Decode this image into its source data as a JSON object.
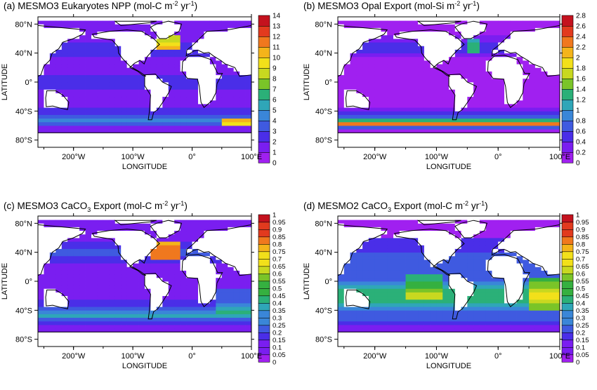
{
  "figure": {
    "panels": [
      {
        "id": "a",
        "title_prefix": "(a) MESMO3 Eukaryotes NPP (mol-C m",
        "title_sup1": "-2",
        "title_mid": " yr",
        "title_sup2": "-1",
        "title_end": ")",
        "title_sub": "",
        "field": "npp",
        "vmax": 14,
        "colorbar_labels": [
          "0",
          "1",
          "2",
          "3",
          "4",
          "5",
          "6",
          "7",
          "8",
          "9",
          "10",
          "11",
          "12",
          "13",
          "14"
        ],
        "xticks": [
          "200°W",
          "100°W",
          "0°",
          "100°E"
        ],
        "yticks": [
          "80°N",
          "40°N",
          "0°",
          "40°S",
          "80°S"
        ],
        "xlabel": "LONGITUDE",
        "ylabel": "LATITUDE"
      },
      {
        "id": "b",
        "title_prefix": "(b) MESMO3 Opal Export (mol-Si m",
        "title_sup1": "-2",
        "title_mid": " yr",
        "title_sup2": "-1",
        "title_end": ")",
        "title_sub": "",
        "field": "opal",
        "vmax": 2.8,
        "colorbar_labels": [
          "0",
          "0.2",
          "0.4",
          "0.6",
          "0.8",
          "1",
          "1.2",
          "1.4",
          "1.6",
          "1.8",
          "2",
          "2.2",
          "2.4",
          "2.6",
          "2.8"
        ],
        "xticks": [
          "200°W",
          "100°W",
          "0°",
          "100°E"
        ],
        "yticks": [
          "80°N",
          "40°N",
          "0°",
          "40°S",
          "80°S"
        ],
        "xlabel": "LONGITUDE",
        "ylabel": "LATITUDE"
      },
      {
        "id": "c",
        "title_prefix": "(c) MESMO3 CaCO",
        "title_sub": "3",
        "title_after_sub": " Export (mol-C m",
        "title_sup1": "-2",
        "title_mid": " yr",
        "title_sup2": "-1",
        "title_end": ")",
        "field": "caco3_m3",
        "vmax": 1,
        "colorbar_labels": [
          "0",
          "0.05",
          "0.1",
          "0.15",
          "0.2",
          "0.25",
          "0.3",
          "0.35",
          "0.4",
          "0.45",
          "0.5",
          "0.55",
          "0.6",
          "0.65",
          "0.7",
          "0.75",
          "0.8",
          "0.85",
          "0.9",
          "0.95",
          "1"
        ],
        "xticks": [
          "200°W",
          "100°W",
          "0°",
          "100°E"
        ],
        "yticks": [
          "80°N",
          "40°N",
          "0°",
          "40°S",
          "80°S"
        ],
        "xlabel": "LONGITUDE",
        "ylabel": "LATITUDE"
      },
      {
        "id": "d",
        "title_prefix": "(d) MESMO2 CaCO",
        "title_sub": "3",
        "title_after_sub": " Export (mol-C m",
        "title_sup1": "-2",
        "title_mid": " yr",
        "title_sup2": "-1",
        "title_end": ")",
        "field": "caco3_m2",
        "vmax": 1,
        "colorbar_labels": [
          "0",
          "0.05",
          "0.1",
          "0.15",
          "0.2",
          "0.25",
          "0.3",
          "0.35",
          "0.4",
          "0.45",
          "0.5",
          "0.55",
          "0.6",
          "0.65",
          "0.7",
          "0.75",
          "0.8",
          "0.85",
          "0.9",
          "0.95",
          "1"
        ],
        "xticks": [
          "200°W",
          "100°W",
          "0°",
          "100°E"
        ],
        "yticks": [
          "80°N",
          "40°N",
          "0°",
          "40°S",
          "80°S"
        ],
        "xlabel": "LONGITUDE",
        "ylabel": "LATITUDE"
      }
    ],
    "colormap": [
      "#a020f0",
      "#7a1ef0",
      "#4a2ee8",
      "#3f5ae0",
      "#3a86d8",
      "#2fa6b8",
      "#2bb078",
      "#35b040",
      "#7ac428",
      "#c8d820",
      "#f2e01a",
      "#f4b41a",
      "#f0781e",
      "#e23a1e",
      "#c4121e"
    ],
    "land_color": "#ffffff",
    "ocean_default": "#a020f0"
  }
}
